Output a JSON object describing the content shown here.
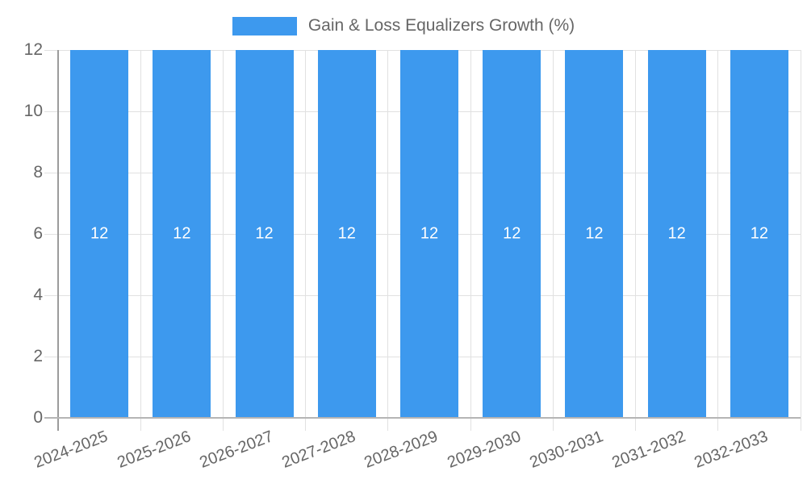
{
  "legend": {
    "label": "Gain & Loss Equalizers Growth (%)"
  },
  "chart_data": {
    "type": "bar",
    "title": "Gain & Loss Equalizers Growth (%)",
    "categories": [
      "2024-2025",
      "2025-2026",
      "2026-2027",
      "2027-2028",
      "2028-2029",
      "2029-2030",
      "2030-2031",
      "2031-2032",
      "2032-2033"
    ],
    "series": [
      {
        "name": "Gain & Loss Equalizers Growth (%)",
        "values": [
          12,
          12,
          12,
          12,
          12,
          12,
          12,
          12,
          12
        ]
      }
    ],
    "bar_value_labels": [
      "12",
      "12",
      "12",
      "12",
      "12",
      "12",
      "12",
      "12",
      "12"
    ],
    "xlabel": "",
    "ylabel": "",
    "ylim": [
      0,
      12
    ],
    "yticks": [
      0,
      2,
      4,
      6,
      8,
      10,
      12
    ],
    "grid": true,
    "legend_position": "top",
    "colors": {
      "bar": "#3D99EE",
      "bar_label": "#FFFFFF",
      "tick_text": "#666666",
      "legend_text": "#666666",
      "gridline": "#E1E1E1",
      "y_axis_line": "#9B9B9B",
      "x_axis_line": "#B5B5B5",
      "background": "#FFFFFF"
    }
  }
}
